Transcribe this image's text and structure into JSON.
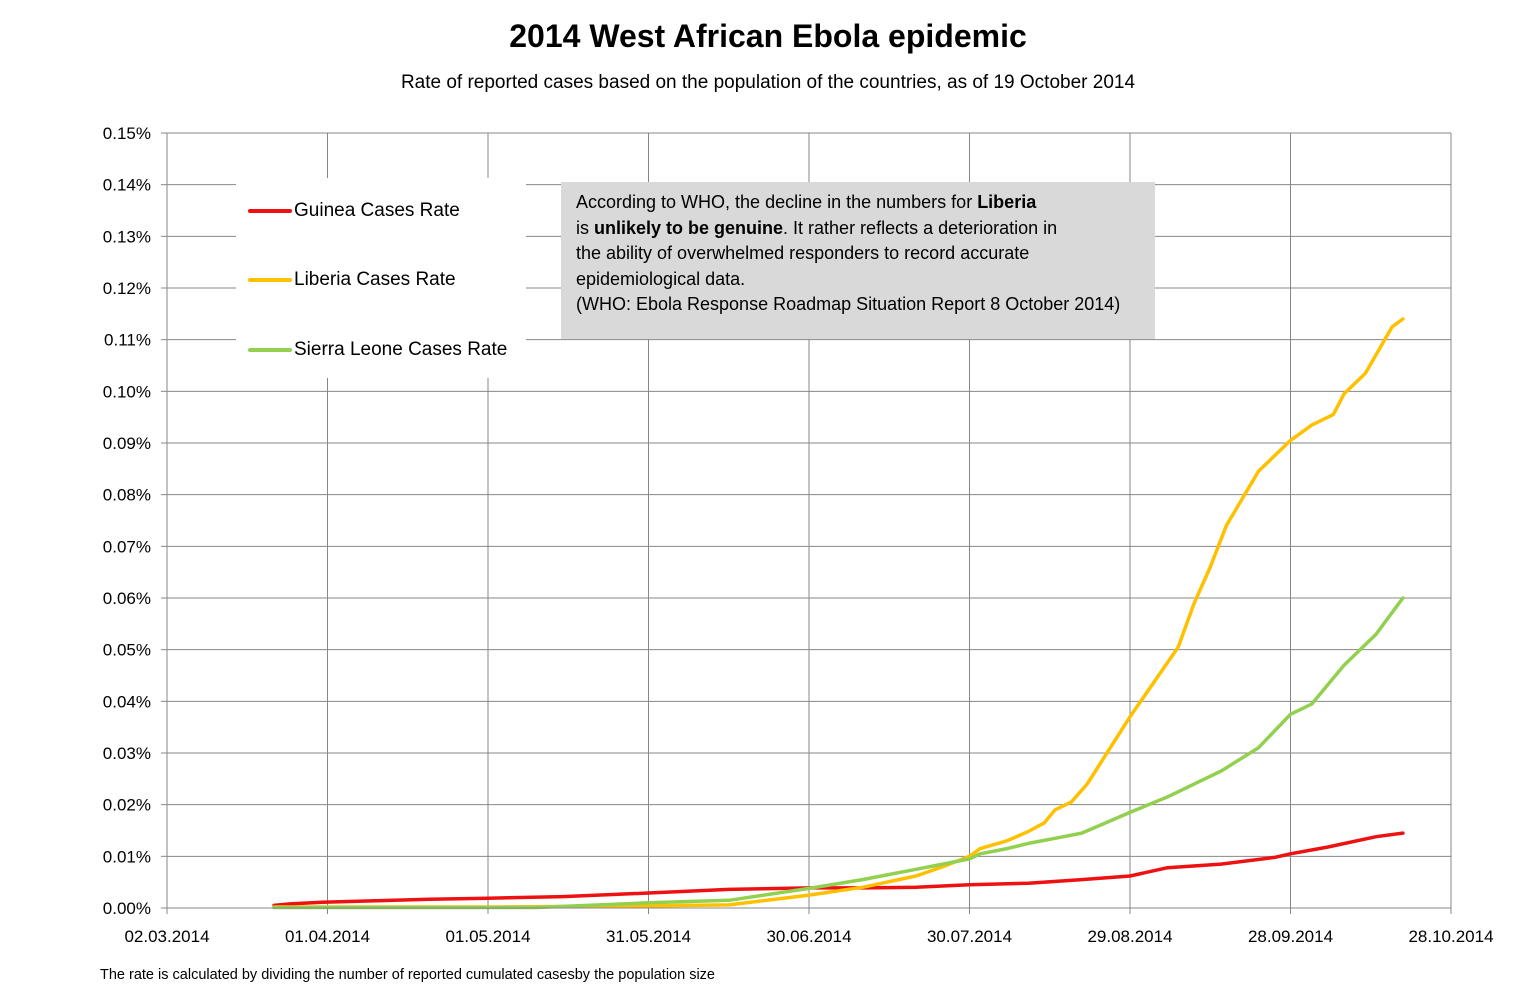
{
  "header": {
    "title": "2014 West African Ebola epidemic",
    "subtitle": "Rate of reported cases based on the population of the countries, as of 19 October 2014"
  },
  "footnote": "The rate is calculated by dividing the number of  reported cumulated casesby the population size",
  "annotation": {
    "line1_pre": "According to WHO, the decline in the numbers for ",
    "line1_bold": "Liberia",
    "line2_pre": " is ",
    "line2_bold": "unlikely to be genuine",
    "line2_post": ". It rather reflects a deterioration in",
    "line3": "the ability of overwhelmed responders to record accurate",
    "line4": "epidemiological data.",
    "line5": "(WHO: Ebola Response Roadmap Situation Report 8 October 2014)",
    "background": "#d9d9d9"
  },
  "chart_data": {
    "type": "line",
    "x_type": "date",
    "xlim": [
      "02.03.2014",
      "28.10.2014"
    ],
    "x_ticks": [
      "02.03.2014",
      "01.04.2014",
      "01.05.2014",
      "31.05.2014",
      "30.06.2014",
      "30.07.2014",
      "29.08.2014",
      "28.09.2014",
      "28.10.2014"
    ],
    "ylim": [
      0,
      0.15
    ],
    "y_unit": "%",
    "y_ticks": [
      "0.00%",
      "0.01%",
      "0.02%",
      "0.03%",
      "0.04%",
      "0.05%",
      "0.06%",
      "0.07%",
      "0.08%",
      "0.09%",
      "0.10%",
      "0.11%",
      "0.12%",
      "0.13%",
      "0.14%",
      "0.15%"
    ],
    "grid": true,
    "legend_position": "top-left",
    "series": [
      {
        "name": "Guinea Cases Rate",
        "color": "#ee1111",
        "points": [
          [
            "22.03.2014",
            0.0005
          ],
          [
            "25.03.2014",
            0.0008
          ],
          [
            "31.03.2014",
            0.0011
          ],
          [
            "10.04.2014",
            0.0014
          ],
          [
            "20.04.2014",
            0.0017
          ],
          [
            "01.05.2014",
            0.0019
          ],
          [
            "15.05.2014",
            0.0022
          ],
          [
            "31.05.2014",
            0.0029
          ],
          [
            "15.06.2014",
            0.0036
          ],
          [
            "30.06.2014",
            0.0039
          ],
          [
            "10.07.2014",
            0.0039
          ],
          [
            "20.07.2014",
            0.004
          ],
          [
            "30.07.2014",
            0.0045
          ],
          [
            "10.08.2014",
            0.0048
          ],
          [
            "20.08.2014",
            0.0055
          ],
          [
            "29.08.2014",
            0.0062
          ],
          [
            "05.09.2014",
            0.0078
          ],
          [
            "15.09.2014",
            0.0085
          ],
          [
            "25.09.2014",
            0.0098
          ],
          [
            "28.09.2014",
            0.0105
          ],
          [
            "05.10.2014",
            0.0118
          ],
          [
            "14.10.2014",
            0.0138
          ],
          [
            "19.10.2014",
            0.0145
          ]
        ]
      },
      {
        "name": "Liberia Cases Rate",
        "color": "#ffc000",
        "points": [
          [
            "22.03.2014",
            0.0002
          ],
          [
            "01.04.2014",
            0.0002
          ],
          [
            "01.05.2014",
            0.0002
          ],
          [
            "15.05.2014",
            0.0003
          ],
          [
            "31.05.2014",
            0.0004
          ],
          [
            "15.06.2014",
            0.0006
          ],
          [
            "30.06.2014",
            0.0025
          ],
          [
            "10.07.2014",
            0.004
          ],
          [
            "20.07.2014",
            0.0062
          ],
          [
            "25.07.2014",
            0.008
          ],
          [
            "30.07.2014",
            0.01
          ],
          [
            "01.08.2014",
            0.0115
          ],
          [
            "06.08.2014",
            0.013
          ],
          [
            "10.08.2014",
            0.0148
          ],
          [
            "13.08.2014",
            0.0165
          ],
          [
            "15.08.2014",
            0.019
          ],
          [
            "18.08.2014",
            0.0205
          ],
          [
            "21.08.2014",
            0.024
          ],
          [
            "29.08.2014",
            0.037
          ],
          [
            "07.09.2014",
            0.0505
          ],
          [
            "10.09.2014",
            0.059
          ],
          [
            "13.09.2014",
            0.066
          ],
          [
            "16.09.2014",
            0.074
          ],
          [
            "22.09.2014",
            0.0845
          ],
          [
            "28.09.2014",
            0.0905
          ],
          [
            "02.10.2014",
            0.0935
          ],
          [
            "06.10.2014",
            0.0955
          ],
          [
            "08.10.2014",
            0.0995
          ],
          [
            "12.10.2014",
            0.1035
          ],
          [
            "17.10.2014",
            0.1125
          ],
          [
            "19.10.2014",
            0.114
          ]
        ]
      },
      {
        "name": "Sierra Leone Cases Rate",
        "color": "#92d050",
        "points": [
          [
            "22.03.2014",
            0.0001
          ],
          [
            "01.04.2014",
            0.0001
          ],
          [
            "01.05.2014",
            0.0001
          ],
          [
            "10.05.2014",
            0.0001
          ],
          [
            "31.05.2014",
            0.001
          ],
          [
            "15.06.2014",
            0.0015
          ],
          [
            "30.06.2014",
            0.0038
          ],
          [
            "10.07.2014",
            0.0055
          ],
          [
            "20.07.2014",
            0.0075
          ],
          [
            "25.07.2014",
            0.0085
          ],
          [
            "30.07.2014",
            0.0095
          ],
          [
            "01.08.2014",
            0.0105
          ],
          [
            "06.08.2014",
            0.0115
          ],
          [
            "10.08.2014",
            0.0125
          ],
          [
            "15.08.2014",
            0.0135
          ],
          [
            "20.08.2014",
            0.0145
          ],
          [
            "29.08.2014",
            0.0185
          ],
          [
            "05.09.2014",
            0.0215
          ],
          [
            "15.09.2014",
            0.0265
          ],
          [
            "22.09.2014",
            0.031
          ],
          [
            "28.09.2014",
            0.0375
          ],
          [
            "02.10.2014",
            0.0395
          ],
          [
            "08.10.2014",
            0.047
          ],
          [
            "14.10.2014",
            0.053
          ],
          [
            "19.10.2014",
            0.06
          ]
        ]
      }
    ]
  }
}
